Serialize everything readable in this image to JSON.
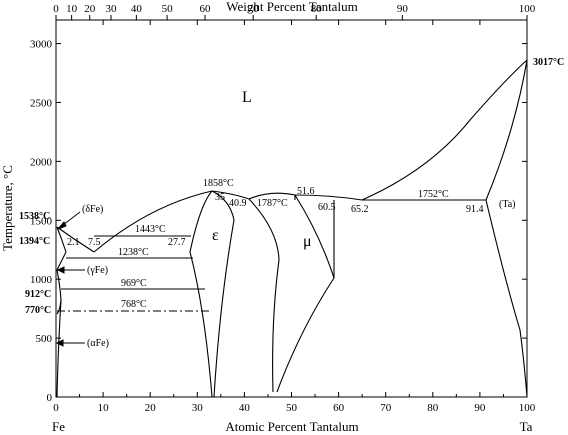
{
  "chart_data": {
    "type": "diagram",
    "top_axis": {
      "title": "Weight Percent Tantalum",
      "ticks": [
        {
          "value": 0,
          "label": "0"
        },
        {
          "value": 10,
          "label": "10"
        },
        {
          "value": 20,
          "label": "20"
        },
        {
          "value": 30,
          "label": "30"
        },
        {
          "value": 40,
          "label": "40"
        },
        {
          "value": 50,
          "label": "50"
        },
        {
          "value": 60,
          "label": "60"
        },
        {
          "value": 70,
          "label": "70"
        },
        {
          "value": 80,
          "label": "80"
        },
        {
          "value": 90,
          "label": "90"
        },
        {
          "value": 100,
          "label": "100"
        }
      ]
    },
    "bottom_axis": {
      "title": "Atomic Percent Tantalum",
      "xlim": [
        0,
        100
      ],
      "ticks": [
        "0",
        "10",
        "20",
        "30",
        "40",
        "50",
        "60",
        "70",
        "80",
        "90",
        "100"
      ],
      "left_element": "Fe",
      "right_element": "Ta"
    },
    "left_axis": {
      "title": "Temperature, °C",
      "ylim": [
        0,
        3200
      ],
      "ticks": [
        "0",
        "500",
        "1000",
        "1500",
        "2000",
        "2500",
        "3000"
      ]
    },
    "phases": {
      "liquid": "L",
      "epsilon": "ε",
      "mu": "μ",
      "ta": "(Ta)",
      "delta_fe": "(δFe)",
      "gamma_fe": "(γFe)",
      "alpha_fe": "(αFe)"
    },
    "axis_temperatures": [
      {
        "label": "1538°C",
        "temp": 1538
      },
      {
        "label": "1394°C",
        "temp": 1394
      },
      {
        "label": "912°C",
        "temp": 912
      },
      {
        "label": "770°C",
        "temp": 770
      },
      {
        "label": "3017°C",
        "temp": 3017
      }
    ],
    "isotherms": [
      {
        "label": "1443°C",
        "temp": 1443,
        "x_start": 7.5,
        "x_end": 27.7
      },
      {
        "label": "1238°C",
        "temp": 1238,
        "x_start": 2.1,
        "x_end": 28.5
      },
      {
        "label": "969°C",
        "temp": 969,
        "x_start": 1,
        "x_end": 32
      },
      {
        "label": "768°C",
        "temp": 768,
        "x_start": 0,
        "x_end": 33,
        "style": "dash-dot"
      },
      {
        "label": "1752°C",
        "temp": 1752,
        "x_start": 65.2,
        "x_end": 91.4
      }
    ],
    "points": [
      {
        "label": "1858°C",
        "x": 35,
        "temp": 1858
      },
      {
        "label": "35",
        "x": 35,
        "temp": 1858
      },
      {
        "label": "40.9",
        "x": 40.9,
        "temp": 1787
      },
      {
        "label": "1787°C",
        "x": 40.9,
        "temp": 1787
      },
      {
        "label": "51.6",
        "x": 51.6,
        "temp": 1780
      },
      {
        "label": "60.5",
        "x": 60.5,
        "temp": 1775
      },
      {
        "label": "65.2",
        "x": 65.2,
        "temp": 1775
      },
      {
        "label": "91.4",
        "x": 91.4,
        "temp": 1752
      },
      {
        "label": "2.1",
        "x": 2.1,
        "temp": 1443
      },
      {
        "label": "7.5",
        "x": 7.5,
        "temp": 1443
      },
      {
        "label": "27.7",
        "x": 27.7,
        "temp": 1443
      }
    ]
  }
}
